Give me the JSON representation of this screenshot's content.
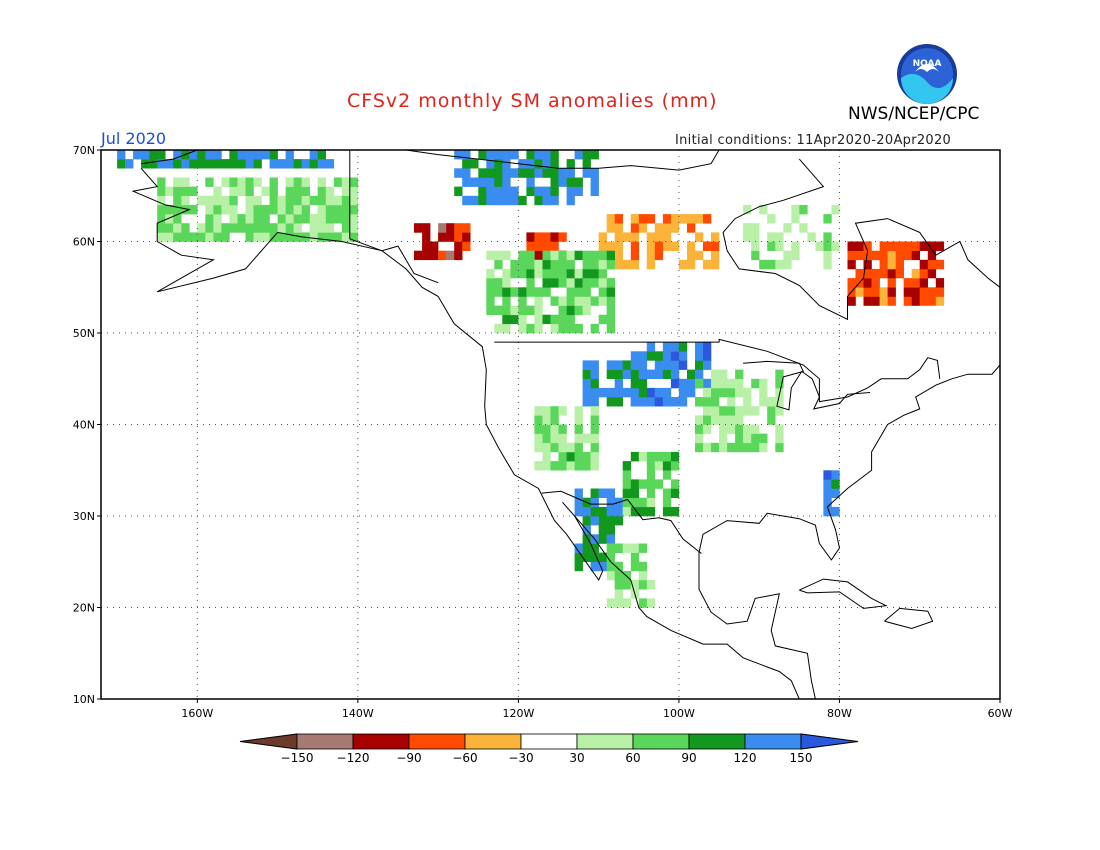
{
  "header": {
    "title": "CFSv2 monthly SM anomalies (mm)",
    "title_color": "#e0241b",
    "org": "NWS/NCEP/CPC",
    "month": "Jul 2020",
    "month_color": "#1a4fd6",
    "initial_conditions": "Initial conditions: 11Apr2020-20Apr2020",
    "logo_text": "NOAA"
  },
  "map": {
    "projection": "equirectangular",
    "lon_range": [
      -172,
      -60
    ],
    "lat_range": [
      10,
      70
    ],
    "lat_ticks": [
      "70N",
      "60N",
      "50N",
      "40N",
      "30N",
      "20N",
      "10N"
    ],
    "lon_ticks": [
      "160W",
      "140W",
      "120W",
      "100W",
      "80W",
      "60W"
    ],
    "grid": "dotted",
    "land_color": "#ffffff",
    "outline_color": "#000000"
  },
  "colorbar": {
    "labels": [
      "−150",
      "−120",
      "−90",
      "−60",
      "−30",
      "30",
      "60",
      "90",
      "120",
      "150"
    ],
    "colors": [
      "#6b3a2a",
      "#a57a72",
      "#a60000",
      "#ff4a00",
      "#fbb33a",
      "#ffffff",
      "#b9f0a8",
      "#5ad65a",
      "#12981e",
      "#3a8cf0",
      "#2a59e0"
    ]
  },
  "chart_data": {
    "type": "heatmap",
    "title": "CFSv2 monthly SM anomalies (mm)",
    "variable": "soil moisture anomaly",
    "units": "mm",
    "valid_month": "Jul 2020",
    "initial_conditions": "11Apr2020-20Apr2020",
    "levels": [
      -150,
      -120,
      -90,
      -60,
      -30,
      30,
      60,
      90,
      120,
      150
    ],
    "regions": [
      {
        "lon_min": -106,
        "lon_max": -96,
        "lat_min": 42,
        "lat_max": 49,
        "value": 135
      },
      {
        "lon_min": -112,
        "lon_max": -104,
        "lat_min": 42,
        "lat_max": 47,
        "value": 120
      },
      {
        "lon_min": -113,
        "lon_max": -107,
        "lat_min": 24,
        "lat_max": 33,
        "value": 120
      },
      {
        "lon_min": -128,
        "lon_max": -110,
        "lat_min": 64,
        "lat_max": 70,
        "value": 125
      },
      {
        "lon_min": -170,
        "lon_max": -143,
        "lat_min": 68,
        "lat_max": 70,
        "value": 125
      },
      {
        "lon_min": -82,
        "lon_max": -80,
        "lat_min": 30,
        "lat_max": 35,
        "value": 130
      },
      {
        "lon_min": -133,
        "lon_max": -126,
        "lat_min": 58,
        "lat_max": 62,
        "value": -100
      },
      {
        "lon_min": -119,
        "lon_max": -114,
        "lat_min": 57,
        "lat_max": 61,
        "value": -95
      },
      {
        "lon_min": -79,
        "lon_max": -67,
        "lat_min": 53,
        "lat_max": 60,
        "value": -80
      },
      {
        "lon_min": -110,
        "lon_max": -95,
        "lat_min": 57,
        "lat_max": 63,
        "value": -45
      },
      {
        "lon_min": -124,
        "lon_max": -108,
        "lat_min": 50,
        "lat_max": 59,
        "value": 70
      },
      {
        "lon_min": -98,
        "lon_max": -87,
        "lat_min": 37,
        "lat_max": 46,
        "value": 60
      },
      {
        "lon_min": -118,
        "lon_max": -110,
        "lat_min": 35,
        "lat_max": 42,
        "value": 70
      },
      {
        "lon_min": -107,
        "lon_max": -100,
        "lat_min": 30,
        "lat_max": 37,
        "value": 80
      },
      {
        "lon_min": -109,
        "lon_max": -103,
        "lat_min": 20,
        "lat_max": 27,
        "value": 60
      },
      {
        "lon_min": -165,
        "lon_max": -140,
        "lat_min": 60,
        "lat_max": 67,
        "value": 60
      },
      {
        "lon_min": -92,
        "lon_max": -80,
        "lat_min": 57,
        "lat_max": 64,
        "value": 40
      }
    ]
  }
}
